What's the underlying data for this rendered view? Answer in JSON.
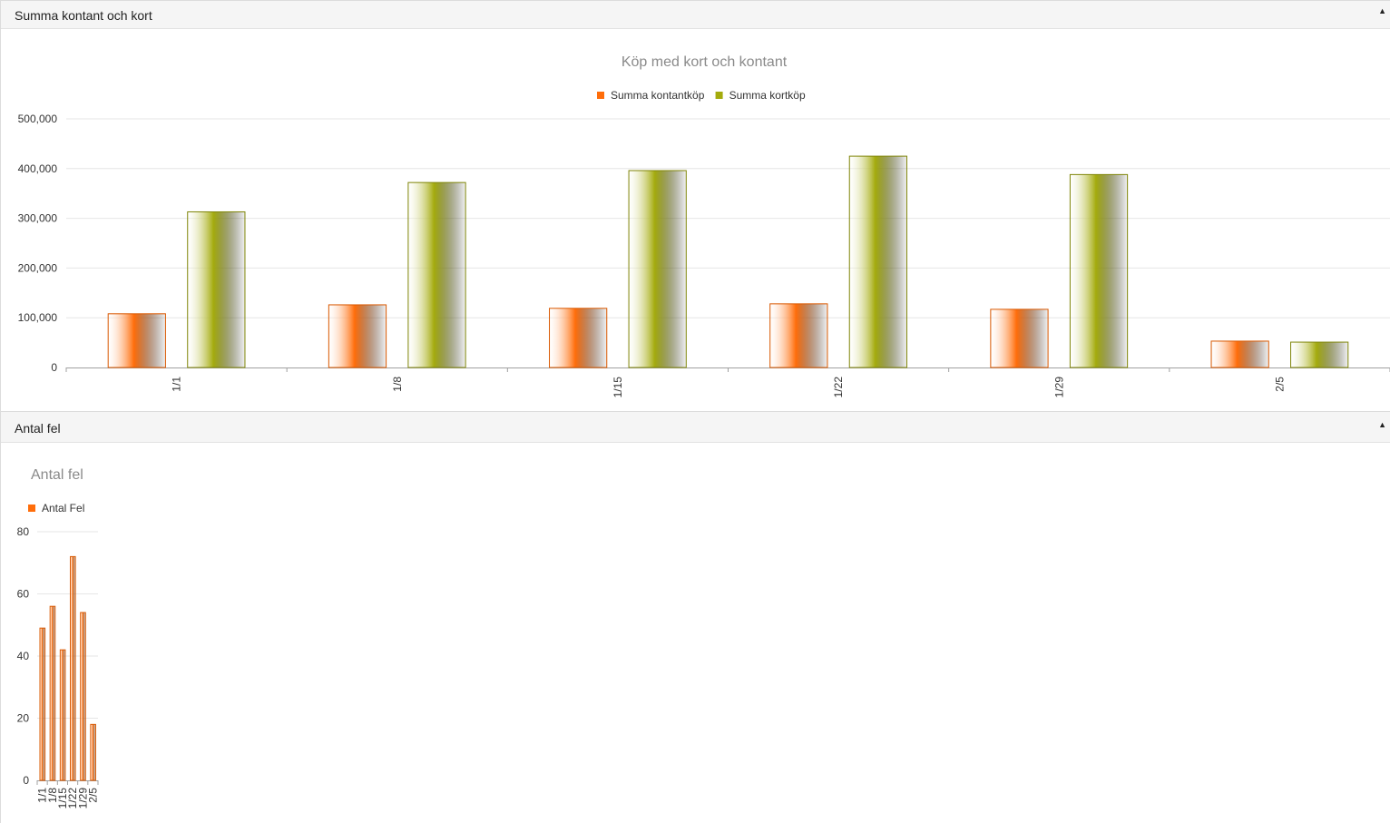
{
  "panels": [
    {
      "title": "Summa kontant och kort",
      "collapse_icon": "triangle-up-icon"
    },
    {
      "title": "Antal fel",
      "collapse_icon": "triangle-up-icon"
    }
  ],
  "chart_data": [
    {
      "type": "bar",
      "title": "Köp med kort och kontant",
      "legend_position": "top-center",
      "grid": true,
      "categories": [
        "1/1",
        "1/8",
        "1/15",
        "1/22",
        "1/29",
        "2/5"
      ],
      "series": [
        {
          "name": "Summa kontantköp",
          "color": "#ff6d0a",
          "values": [
            108000,
            126000,
            119000,
            128000,
            117000,
            53000
          ]
        },
        {
          "name": "Summa kortköp",
          "color": "#a4ab0d",
          "values": [
            313000,
            372000,
            396000,
            425000,
            388000,
            51000
          ]
        }
      ],
      "ylim": [
        0,
        500000
      ],
      "yticks": [
        "0",
        "100,000",
        "200,000",
        "300,000",
        "400,000",
        "500,000"
      ],
      "xlabel": "",
      "ylabel": ""
    },
    {
      "type": "bar",
      "title": "Antal fel",
      "legend_position": "top-left",
      "grid": true,
      "categories": [
        "1/1",
        "1/8",
        "1/15",
        "1/22",
        "1/29",
        "2/5"
      ],
      "series": [
        {
          "name": "Antal Fel",
          "color": "#ff6d0a",
          "values": [
            49,
            56,
            42,
            72,
            54,
            18
          ]
        }
      ],
      "ylim": [
        0,
        80
      ],
      "yticks": [
        "0",
        "20",
        "40",
        "60",
        "80"
      ],
      "xlabel": "",
      "ylabel": ""
    }
  ]
}
